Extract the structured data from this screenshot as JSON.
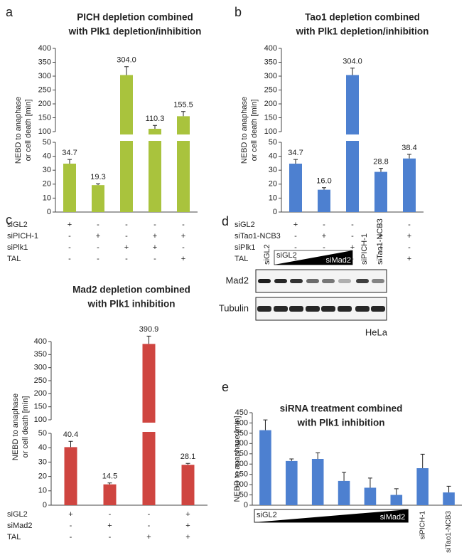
{
  "chart_data": [
    {
      "type": "bar",
      "panel": "a",
      "title": [
        "PICH depletion combined",
        "with Plk1 depletion/inhibition"
      ],
      "ylabel": [
        "NEBD to anaphase",
        "or cell death [min]"
      ],
      "categories": [
        null,
        null,
        null,
        null,
        null
      ],
      "values": [
        34.7,
        19.3,
        304.0,
        110.3,
        155.5
      ],
      "errors": [
        3,
        1,
        30,
        12,
        17
      ],
      "value_labels": [
        "34.7",
        "19.3",
        "304.0",
        "110.3",
        "155.5"
      ],
      "color": "#a9c33d",
      "ylim": [
        0,
        400
      ],
      "axis_break": [
        50,
        100
      ],
      "yticks": [
        0,
        10,
        20,
        30,
        40,
        50,
        100,
        150,
        200,
        250,
        300,
        350,
        400
      ],
      "conditions": [
        {
          "label": "siGL2",
          "marks": [
            "+",
            "-",
            "-",
            "-",
            "-"
          ]
        },
        {
          "label": "siPICH-1",
          "marks": [
            "-",
            "+",
            "-",
            "+",
            "+"
          ]
        },
        {
          "label": "siPlk1",
          "marks": [
            "-",
            "-",
            "+",
            "+",
            "-"
          ]
        },
        {
          "label": "TAL",
          "marks": [
            "-",
            "-",
            "-",
            "-",
            "+"
          ]
        }
      ]
    },
    {
      "type": "bar",
      "panel": "b",
      "title": [
        "Tao1 depletion combined",
        "with Plk1 depletion/inhibition"
      ],
      "ylabel": [
        "NEBD to anaphase",
        "or cell death [min]"
      ],
      "categories": [
        null,
        null,
        null,
        null,
        null
      ],
      "values": [
        34.7,
        16.0,
        304.0,
        28.8,
        38.4
      ],
      "errors": [
        3,
        1.5,
        25,
        2.5,
        3
      ],
      "value_labels": [
        "34.7",
        "16.0",
        "304.0",
        "28.8",
        "38.4"
      ],
      "color": "#4d80d0",
      "ylim": [
        0,
        400
      ],
      "axis_break": [
        50,
        100
      ],
      "yticks": [
        0,
        10,
        20,
        30,
        40,
        50,
        100,
        150,
        200,
        250,
        300,
        350,
        400
      ],
      "conditions": [
        {
          "label": "siGL2",
          "marks": [
            "+",
            "-",
            "-",
            "-",
            "-"
          ]
        },
        {
          "label": "siTao1-NCB3",
          "marks": [
            "-",
            "+",
            "-",
            "+",
            "+"
          ]
        },
        {
          "label": "siPlk1",
          "marks": [
            "-",
            "-",
            "+",
            "+",
            "-"
          ]
        },
        {
          "label": "TAL",
          "marks": [
            "-",
            "-",
            "-",
            "-",
            "+"
          ]
        }
      ]
    },
    {
      "type": "bar",
      "panel": "c",
      "title": [
        "Mad2 depletion combined",
        "with Plk1 inhibition"
      ],
      "ylabel": [
        "NEBD to anaphase",
        "or cell death [min]"
      ],
      "categories": [
        null,
        null,
        null,
        null
      ],
      "values": [
        40.4,
        14.5,
        390.9,
        28.1
      ],
      "errors": [
        4,
        1,
        30,
        1
      ],
      "value_labels": [
        "40.4",
        "14.5",
        "390.9",
        "28.1"
      ],
      "color": "#cf4540",
      "ylim": [
        0,
        400
      ],
      "axis_break": [
        50,
        100
      ],
      "yticks": [
        0,
        10,
        20,
        30,
        40,
        50,
        100,
        150,
        200,
        250,
        300,
        350,
        400
      ],
      "conditions": [
        {
          "label": "siGL2",
          "marks": [
            "+",
            "-",
            "-",
            "+"
          ]
        },
        {
          "label": "siMad2",
          "marks": [
            "-",
            "+",
            "-",
            "+"
          ]
        },
        {
          "label": "TAL",
          "marks": [
            "-",
            "-",
            "+",
            "+"
          ]
        }
      ]
    },
    {
      "type": "bar",
      "panel": "e",
      "title": [
        "siRNA treatment combined",
        "with Plk1 inhibition"
      ],
      "ylabel": [
        "NEBD to anaphase [min]"
      ],
      "categories": [
        null,
        null,
        null,
        null,
        null,
        null,
        "siPICH-1",
        "siTao1-NCB3"
      ],
      "values": [
        365,
        215,
        225,
        118,
        85,
        50,
        180,
        62
      ],
      "errors": [
        50,
        10,
        30,
        42,
        47,
        30,
        68,
        30
      ],
      "gradient_labels": [
        "siGL2",
        "siMad2"
      ],
      "color": "#4d80d0",
      "ylim": [
        0,
        450
      ],
      "yticks": [
        0,
        50,
        100,
        150,
        200,
        250,
        300,
        350,
        400,
        450
      ]
    }
  ],
  "blot": {
    "panel": "d",
    "lane_labels": [
      "siGL2",
      "siPICH-1",
      "siTao1-NCB3"
    ],
    "gradient_labels": [
      "siGL2",
      "siMad2"
    ],
    "rows": [
      "Mad2",
      "Tubulin"
    ],
    "cell_line": "HeLa"
  }
}
